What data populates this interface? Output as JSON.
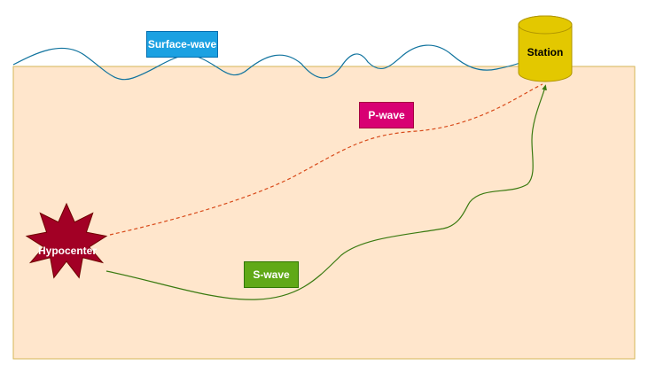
{
  "diagram": {
    "labels": {
      "surface_wave": "Surface-wave",
      "p_wave": "P-wave",
      "s_wave": "S-wave",
      "hypocenter": "Hypocenter",
      "station": "Station"
    },
    "colors": {
      "ground_fill": "#ffe6cc",
      "ground_stroke": "#d6b656",
      "surface_wave": "#10739e",
      "p_wave": "#d84a1a",
      "s_wave": "#3a7a10",
      "hypocenter_fill": "#a20025",
      "hypocenter_stroke": "#6f0000",
      "station_fill": "#e3c800",
      "station_stroke": "#b09500"
    }
  }
}
